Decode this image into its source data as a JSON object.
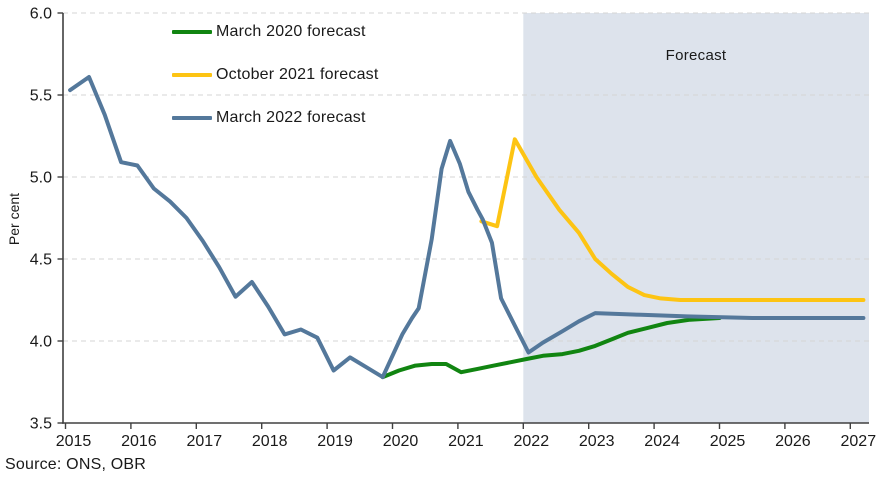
{
  "chart": {
    "ylabel": "Per cent",
    "forecast_label": "Forecast",
    "source": "Source: ONS, OBR",
    "colors": {
      "march_2020": "#118511",
      "october_2021": "#fdc413",
      "march_2022": "#54789b",
      "forecast_band": "#dde3ec",
      "gridline": "#d5d5d5",
      "axis": "#404040",
      "text": "#1a1a1a"
    },
    "legend": [
      {
        "label": "March 2020 forecast",
        "color": "#118511"
      },
      {
        "label": "October 2021 forecast",
        "color": "#fdc413"
      },
      {
        "label": "March 2022 forecast",
        "color": "#54789b"
      }
    ]
  },
  "chart_data": {
    "type": "line",
    "title": "",
    "xlabel": "",
    "ylabel": "Per cent",
    "ylim": [
      3.5,
      6.0
    ],
    "xlim": [
      2015,
      2027.3
    ],
    "yticks": [
      3.5,
      4.0,
      4.5,
      5.0,
      5.5,
      6.0
    ],
    "xticks": [
      2015,
      2016,
      2017,
      2018,
      2019,
      2020,
      2021,
      2022,
      2023,
      2024,
      2025,
      2026,
      2027
    ],
    "grid": "horizontal-dashed",
    "legend_position": "inside-top-left",
    "forecast_band": {
      "start": 2022,
      "end": 2027.3,
      "label": "Forecast"
    },
    "series": [
      {
        "name": "March 2020 forecast",
        "color": "#118511",
        "points": [
          [
            2019.85,
            3.78
          ],
          [
            2020.1,
            3.82
          ],
          [
            2020.35,
            3.85
          ],
          [
            2020.6,
            3.86
          ],
          [
            2020.82,
            3.86
          ],
          [
            2021.05,
            3.81
          ],
          [
            2021.3,
            3.83
          ],
          [
            2021.55,
            3.85
          ],
          [
            2021.8,
            3.87
          ],
          [
            2022.05,
            3.89
          ],
          [
            2022.3,
            3.91
          ],
          [
            2022.6,
            3.92
          ],
          [
            2022.85,
            3.94
          ],
          [
            2023.1,
            3.97
          ],
          [
            2023.35,
            4.01
          ],
          [
            2023.6,
            4.05
          ],
          [
            2023.9,
            4.08
          ],
          [
            2024.2,
            4.11
          ],
          [
            2024.55,
            4.13
          ],
          [
            2025.0,
            4.14
          ]
        ]
      },
      {
        "name": "October 2021 forecast",
        "color": "#fdc413",
        "points": [
          [
            2021.36,
            4.73
          ],
          [
            2021.6,
            4.7
          ],
          [
            2021.87,
            5.23
          ],
          [
            2022.2,
            5.0
          ],
          [
            2022.55,
            4.8
          ],
          [
            2022.85,
            4.66
          ],
          [
            2023.1,
            4.5
          ],
          [
            2023.35,
            4.41
          ],
          [
            2023.6,
            4.33
          ],
          [
            2023.85,
            4.28
          ],
          [
            2024.1,
            4.26
          ],
          [
            2024.4,
            4.25
          ],
          [
            2025.0,
            4.25
          ],
          [
            2026.0,
            4.25
          ],
          [
            2027.2,
            4.25
          ]
        ]
      },
      {
        "name": "March 2022 forecast",
        "color": "#54789b",
        "points": [
          [
            2015.07,
            5.53
          ],
          [
            2015.36,
            5.61
          ],
          [
            2015.6,
            5.38
          ],
          [
            2015.85,
            5.09
          ],
          [
            2016.1,
            5.07
          ],
          [
            2016.35,
            4.93
          ],
          [
            2016.6,
            4.85
          ],
          [
            2016.85,
            4.75
          ],
          [
            2017.1,
            4.61
          ],
          [
            2017.35,
            4.45
          ],
          [
            2017.6,
            4.27
          ],
          [
            2017.85,
            4.36
          ],
          [
            2018.1,
            4.21
          ],
          [
            2018.35,
            4.04
          ],
          [
            2018.6,
            4.07
          ],
          [
            2018.85,
            4.02
          ],
          [
            2019.1,
            3.82
          ],
          [
            2019.35,
            3.9
          ],
          [
            2019.6,
            3.84
          ],
          [
            2019.85,
            3.78
          ],
          [
            2020.15,
            4.04
          ],
          [
            2020.3,
            4.14
          ],
          [
            2020.4,
            4.2
          ],
          [
            2020.6,
            4.62
          ],
          [
            2020.75,
            5.05
          ],
          [
            2020.88,
            5.22
          ],
          [
            2021.03,
            5.08
          ],
          [
            2021.16,
            4.91
          ],
          [
            2021.3,
            4.8
          ],
          [
            2021.38,
            4.74
          ],
          [
            2021.52,
            4.6
          ],
          [
            2021.66,
            4.26
          ],
          [
            2021.9,
            4.07
          ],
          [
            2022.08,
            3.93
          ],
          [
            2022.3,
            3.99
          ],
          [
            2022.6,
            4.06
          ],
          [
            2022.85,
            4.12
          ],
          [
            2023.1,
            4.17
          ],
          [
            2023.8,
            4.16
          ],
          [
            2024.5,
            4.15
          ],
          [
            2025.5,
            4.14
          ],
          [
            2027.2,
            4.14
          ]
        ]
      }
    ]
  }
}
